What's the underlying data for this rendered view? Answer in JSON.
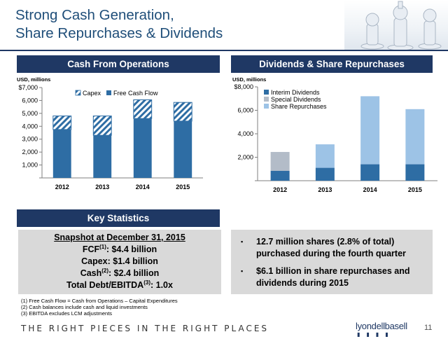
{
  "title": {
    "line1": "Strong Cash Generation,",
    "line2": "Share Repurchases & Dividends"
  },
  "banners": {
    "cfo": "Cash From Operations",
    "dividends": "Dividends & Share Repurchases",
    "stats": "Key Statistics"
  },
  "colors": {
    "navy": "#1f3864",
    "fcf_blue": "#2e6da4",
    "interim": "#2e6da4",
    "special": "#b3bcc8",
    "repurchase": "#9dc3e6"
  },
  "chart_data": [
    {
      "type": "bar",
      "stacked": true,
      "unit_label": "USD, millions",
      "categories": [
        "2012",
        "2013",
        "2014",
        "2015"
      ],
      "series": [
        {
          "name": "Free Cash Flow",
          "values": [
            3750,
            3300,
            4600,
            4400
          ],
          "color": "#2e6da4",
          "pattern": "solid"
        },
        {
          "name": "Capex",
          "values": [
            1050,
            1500,
            1450,
            1450
          ],
          "color": "#2e6da4",
          "pattern": "hatched"
        }
      ],
      "ylim": [
        0,
        7000
      ],
      "yticks": [
        "",
        "1,000",
        "2,000",
        "3,000",
        "4,000",
        "5,000",
        "6,000",
        "$7,000"
      ],
      "legend": "top-center",
      "grid": false
    },
    {
      "type": "bar",
      "stacked": true,
      "unit_label": "USD, millions",
      "categories": [
        "2012",
        "2013",
        "2014",
        "2015"
      ],
      "series": [
        {
          "name": "Interim Dividends",
          "values": [
            850,
            1100,
            1400,
            1400
          ],
          "color": "#2e6da4"
        },
        {
          "name": "Special Dividends",
          "values": [
            1600,
            0,
            0,
            0
          ],
          "color": "#b3bcc8"
        },
        {
          "name": "Share Repurchases",
          "values": [
            0,
            2000,
            5800,
            4700
          ],
          "color": "#9dc3e6"
        }
      ],
      "ylim": [
        0,
        8000
      ],
      "yticks": [
        "",
        "2,000",
        "4,000",
        "6,000",
        "$8,000"
      ],
      "legend": "top-left",
      "grid": false
    }
  ],
  "snapshot": {
    "heading": "Snapshot at December 31, 2015",
    "fcf_label": "FCF",
    "fcf_sup": "(1)",
    "fcf_value": ":  $4.4 billion",
    "capex_line": "Capex:  $1.4 billion",
    "cash_label": "Cash",
    "cash_sup": "(2)",
    "cash_value": ":  $2.4 billion",
    "debt_label": "Total Debt/EBITDA",
    "debt_sup": "(3)",
    "debt_value": ": 1.0x"
  },
  "bullets": [
    "12.7 million shares (2.8% of total) purchased during the fourth quarter",
    "$6.1 billion in share repurchases and dividends during 2015"
  ],
  "bullet_marker": "▪",
  "footnotes": [
    "(1) Free Cash Flow = Cash from Operations – Capital Expenditures",
    "(2) Cash balances include cash and liquid investments",
    "(3) EBITDA excludes LCM adjustments"
  ],
  "tagline": "THE RIGHT PIECES IN THE RIGHT PLACES",
  "logo": "lyondellbasell",
  "page_number": "11"
}
